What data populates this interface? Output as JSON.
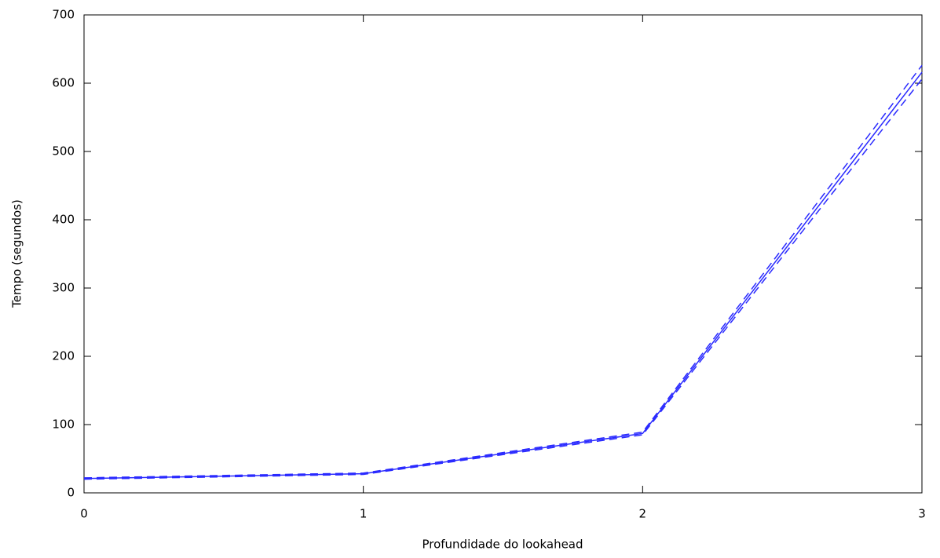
{
  "chart_data": {
    "type": "line",
    "x_label": "Profundidade do lookahead",
    "y_label": "Tempo (segundos)",
    "x": [
      0,
      1,
      2,
      3
    ],
    "series": [
      {
        "color": "#2a2aff",
        "dashed": false,
        "values": [
          21,
          28,
          87,
          616
        ]
      },
      {
        "color": "#2a2aff",
        "dashed": true,
        "values": [
          22,
          29,
          89,
          626
        ]
      },
      {
        "color": "#2a2aff",
        "dashed": true,
        "values": [
          20,
          27,
          85,
          606
        ]
      }
    ],
    "xlim": [
      0,
      3
    ],
    "xticks": [
      0,
      1,
      2,
      3
    ],
    "ylim": [
      0,
      700
    ],
    "yticks": [
      0,
      100,
      200,
      300,
      400,
      500,
      600,
      700
    ],
    "grid": false
  }
}
